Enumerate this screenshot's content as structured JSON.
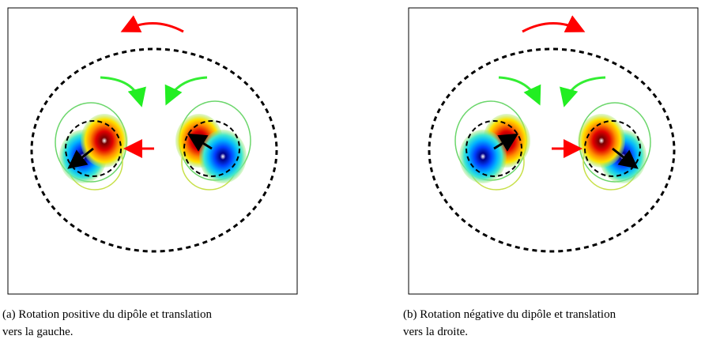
{
  "panels": [
    {
      "caption": [
        "(a) Rotation positive du dipôle et translation",
        "vers la gauche."
      ]
    },
    {
      "caption": [
        "(b) Rotation négative du dipôle et translation",
        "vers la droite."
      ]
    }
  ]
}
